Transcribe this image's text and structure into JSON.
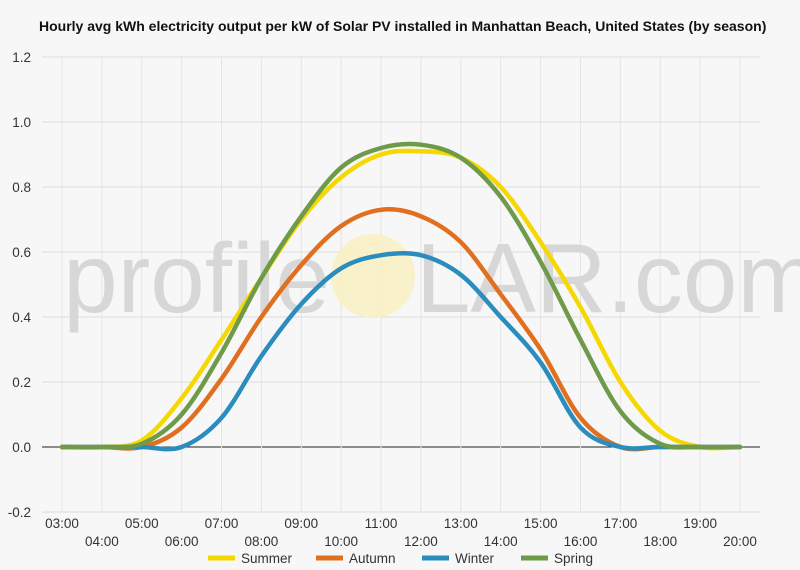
{
  "chart_data": {
    "type": "line",
    "title": "Hourly avg kWh electricity output per kW of Solar PV installed in Manhattan Beach, United States (by season)",
    "xlabel": "",
    "ylabel": "",
    "ylim": [
      -0.2,
      1.2
    ],
    "yticks": [
      "-0.2",
      "0.0",
      "0.2",
      "0.4",
      "0.6",
      "0.8",
      "1.0",
      "1.2"
    ],
    "categories": [
      "03:00",
      "04:00",
      "05:00",
      "06:00",
      "07:00",
      "08:00",
      "09:00",
      "10:00",
      "11:00",
      "12:00",
      "13:00",
      "14:00",
      "15:00",
      "16:00",
      "17:00",
      "18:00",
      "19:00",
      "20:00"
    ],
    "grid": true,
    "legend_position": "bottom",
    "series": [
      {
        "name": "Summer",
        "color": "#f5d800",
        "values": [
          0,
          0,
          0.02,
          0.15,
          0.33,
          0.52,
          0.7,
          0.83,
          0.9,
          0.91,
          0.89,
          0.8,
          0.63,
          0.43,
          0.2,
          0.05,
          0,
          0
        ]
      },
      {
        "name": "Autumn",
        "color": "#e07020",
        "values": [
          0,
          0,
          0,
          0.06,
          0.21,
          0.4,
          0.56,
          0.68,
          0.73,
          0.71,
          0.63,
          0.47,
          0.3,
          0.09,
          0,
          0,
          0,
          0
        ]
      },
      {
        "name": "Winter",
        "color": "#2a8dbe",
        "values": [
          0,
          0,
          0,
          0,
          0.09,
          0.28,
          0.44,
          0.55,
          0.59,
          0.59,
          0.53,
          0.4,
          0.26,
          0.06,
          0,
          0,
          0,
          0
        ]
      },
      {
        "name": "Spring",
        "color": "#6e9a4a",
        "values": [
          0,
          0,
          0.01,
          0.1,
          0.29,
          0.52,
          0.71,
          0.86,
          0.92,
          0.93,
          0.89,
          0.77,
          0.57,
          0.33,
          0.11,
          0.01,
          0,
          0
        ]
      }
    ]
  },
  "watermark": {
    "left": "profile",
    "right": "LAR.com"
  }
}
